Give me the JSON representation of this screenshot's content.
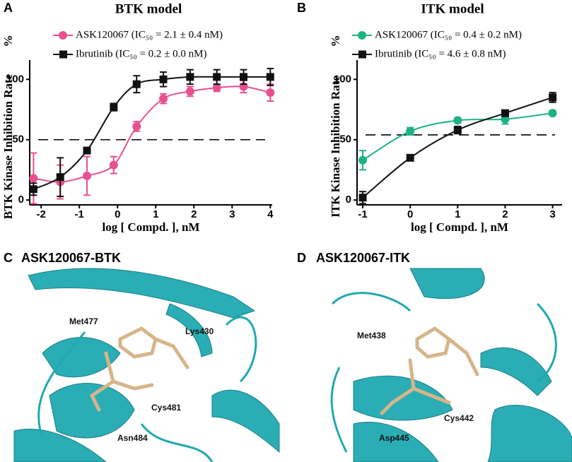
{
  "chart_data": [
    {
      "type": "scatter",
      "panel": "A",
      "title": "BTK model",
      "ylabel": "BTK Kinase Inhibition Rate",
      "y_unit": "%",
      "xlabel": "log [ Compd. ], nM",
      "xlim": [
        -2.3,
        4.05
      ],
      "xticks": [
        -2,
        -1,
        0,
        1,
        2,
        3,
        4
      ],
      "ylim": [
        -4,
        116
      ],
      "yticks": [
        0,
        50,
        100
      ],
      "hline": 50,
      "series": [
        {
          "name": "ASK120067 (IC₅₀ = 2.1 ± 0.4 nM)",
          "color": "#e8508f",
          "marker": "circle",
          "x": [
            -2.2,
            -1.5,
            -0.8,
            -0.1,
            0.5,
            1.2,
            1.9,
            2.6,
            3.3,
            4
          ],
          "values": [
            18,
            15,
            20,
            29,
            61,
            84,
            90,
            93,
            94,
            89
          ],
          "errors": [
            21,
            14,
            16,
            7,
            4,
            4,
            4,
            3,
            5,
            7
          ]
        },
        {
          "name": "Ibrutinib (IC₅₀ = 0.2 ± 0.0 nM)",
          "color": "#111111",
          "marker": "square",
          "x": [
            -2.2,
            -1.5,
            -0.8,
            -0.1,
            0.5,
            1.2,
            1.9,
            2.6,
            3.3,
            4
          ],
          "values": [
            9,
            19,
            41,
            77,
            96,
            100,
            102,
            102,
            102,
            102
          ],
          "errors": [
            5,
            16,
            2,
            3,
            7,
            6,
            6,
            6,
            6,
            7
          ]
        }
      ]
    },
    {
      "type": "scatter",
      "panel": "B",
      "title": "ITK model",
      "ylabel": "ITK Kinase Inhibition Rate",
      "y_unit": "%",
      "xlabel": "log [ Compd. ], nM",
      "xlim": [
        -1.12,
        3.2
      ],
      "xticks": [
        -1,
        0,
        1,
        2,
        3
      ],
      "ylim": [
        -4,
        116
      ],
      "yticks": [
        0,
        50,
        100
      ],
      "hline": 54,
      "series": [
        {
          "name": "ASK120067 (IC₅₀ = 0.4 ± 0.2 nM)",
          "color": "#1db381",
          "marker": "circle",
          "x": [
            -1,
            0,
            1,
            2,
            3
          ],
          "values": [
            33,
            57,
            66,
            67,
            72
          ],
          "errors": [
            8,
            3,
            2,
            4,
            2
          ]
        },
        {
          "name": "Ibrutinib (IC₅₀ = 4.6 ± 0.8 nM)",
          "color": "#111111",
          "marker": "square",
          "x": [
            -1,
            0,
            1,
            2,
            3
          ],
          "values": [
            2,
            35,
            58,
            72,
            85
          ],
          "errors": [
            5,
            2,
            3,
            2,
            4
          ]
        }
      ]
    }
  ],
  "structure_panels": [
    {
      "panel": "C",
      "title": "ASK120067-BTK",
      "residues": [
        "Met477",
        "Lys430",
        "Cys481",
        "Asn484"
      ]
    },
    {
      "panel": "D",
      "title": "ASK120067-ITK",
      "residues": [
        "Met438",
        "Cys442",
        "Asp445"
      ]
    }
  ]
}
